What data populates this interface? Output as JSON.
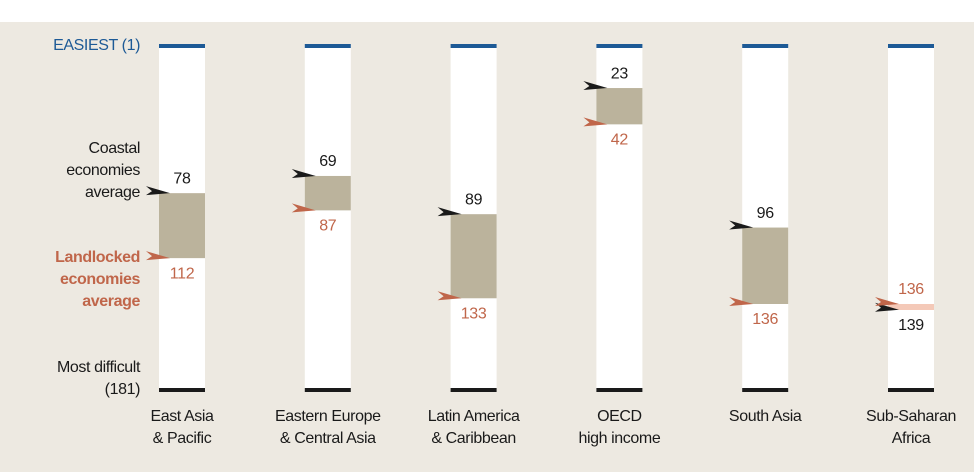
{
  "chart_data": {
    "type": "range",
    "categories": [
      "East Asia\n& Pacific",
      "Eastern Europe\n& Central Asia",
      "Latin America\n& Caribbean",
      "OECD\nhigh income",
      "South Asia",
      "Sub-Saharan\nAfrica"
    ],
    "series": [
      {
        "name": "Coastal\neconomies\naverage",
        "color": "#1a1a1a",
        "values": [
          78,
          69,
          89,
          23,
          96,
          139
        ]
      },
      {
        "name": "Landlocked\neconomies\naverage",
        "color": "#c0664a",
        "values": [
          112,
          87,
          133,
          42,
          136,
          136
        ]
      }
    ],
    "ylim": [
      1,
      181
    ],
    "yticks": [
      {
        "value": 1,
        "label": "EASIEST (1)"
      },
      {
        "value": 181,
        "label": "Most difficult\n(181)"
      }
    ],
    "tick_colors": [
      "#1d5a96",
      "#1a1a1a"
    ],
    "band_color": "#bbb39c",
    "inverted_band_color": "#f4c9b8"
  }
}
